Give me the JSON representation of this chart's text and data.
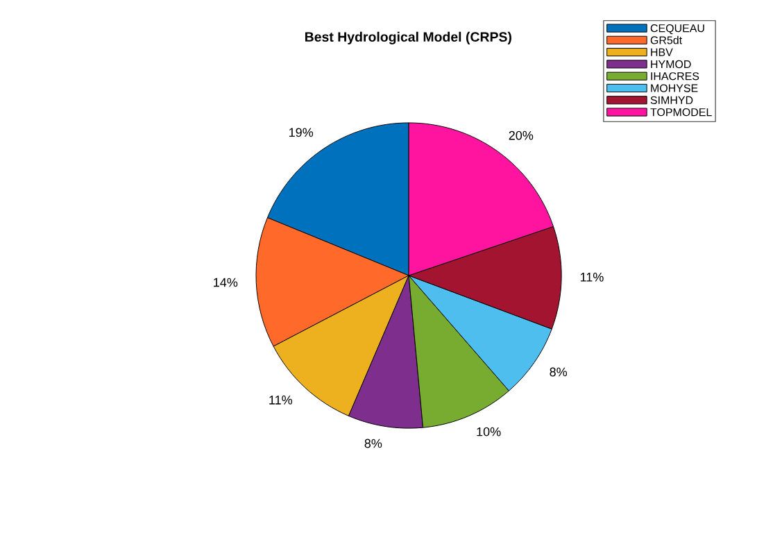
{
  "chart_data": {
    "type": "pie",
    "title": "Best Hydrological Model (CRPS)",
    "categories": [
      "CEQUEAU",
      "GR5dt",
      "HBV",
      "HYMOD",
      "IHACRES",
      "MOHYSE",
      "SIMHYD",
      "TOPMODEL"
    ],
    "values": [
      19,
      14,
      11,
      8,
      10,
      8,
      11,
      20
    ],
    "colors": [
      "#0072bd",
      "#ff6929",
      "#edb120",
      "#7e2f8e",
      "#77ac30",
      "#4dbeee",
      "#a2142f",
      "#ff14a0"
    ],
    "value_labels": [
      "19%",
      "14%",
      "11%",
      "8%",
      "10%",
      "8%",
      "11%",
      "20%"
    ],
    "legend": "top right"
  }
}
